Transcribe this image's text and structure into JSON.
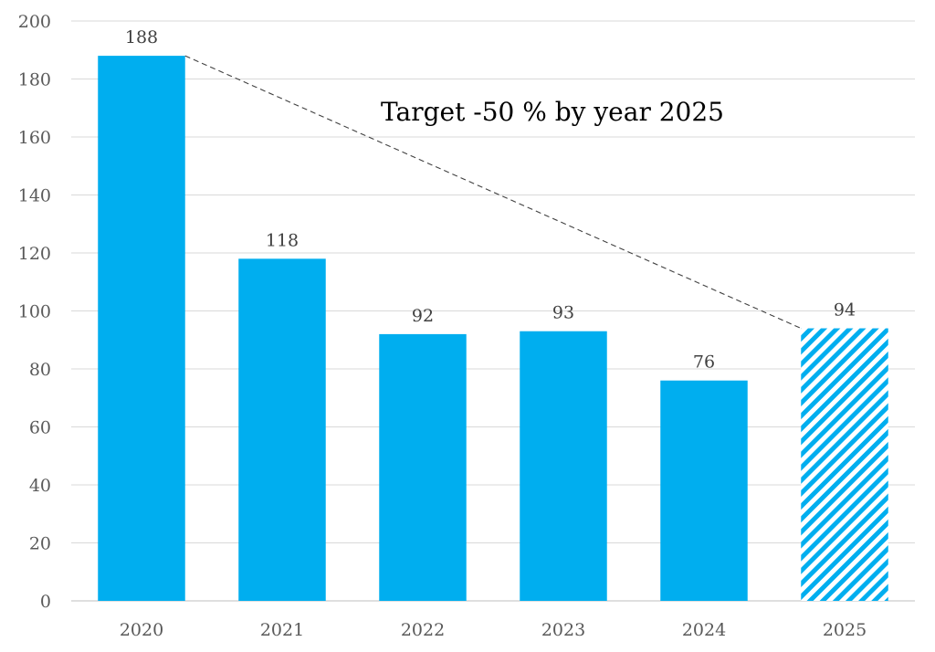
{
  "chart_data": {
    "type": "bar",
    "title": "",
    "xlabel": "",
    "ylabel": "",
    "categories": [
      "2020",
      "2021",
      "2022",
      "2023",
      "2024",
      "2025"
    ],
    "values": [
      188,
      118,
      92,
      93,
      76,
      94
    ],
    "value_labels": [
      "188",
      "118",
      "92",
      "93",
      "76",
      "94"
    ],
    "target_categories": [
      "2025"
    ],
    "ylim": [
      0,
      200
    ],
    "yticks": [
      0,
      20,
      40,
      60,
      80,
      100,
      120,
      140,
      160,
      180,
      200
    ],
    "grid": true,
    "legend": "none",
    "bar_color": "#00AEEF",
    "target_style": "diagonal-hatch",
    "trend_line": {
      "from_category": "2020",
      "from_value": 188,
      "to_category": "2025",
      "to_value": 94,
      "style": "dashed"
    },
    "annotation": "Target -50 % by year 2025"
  }
}
